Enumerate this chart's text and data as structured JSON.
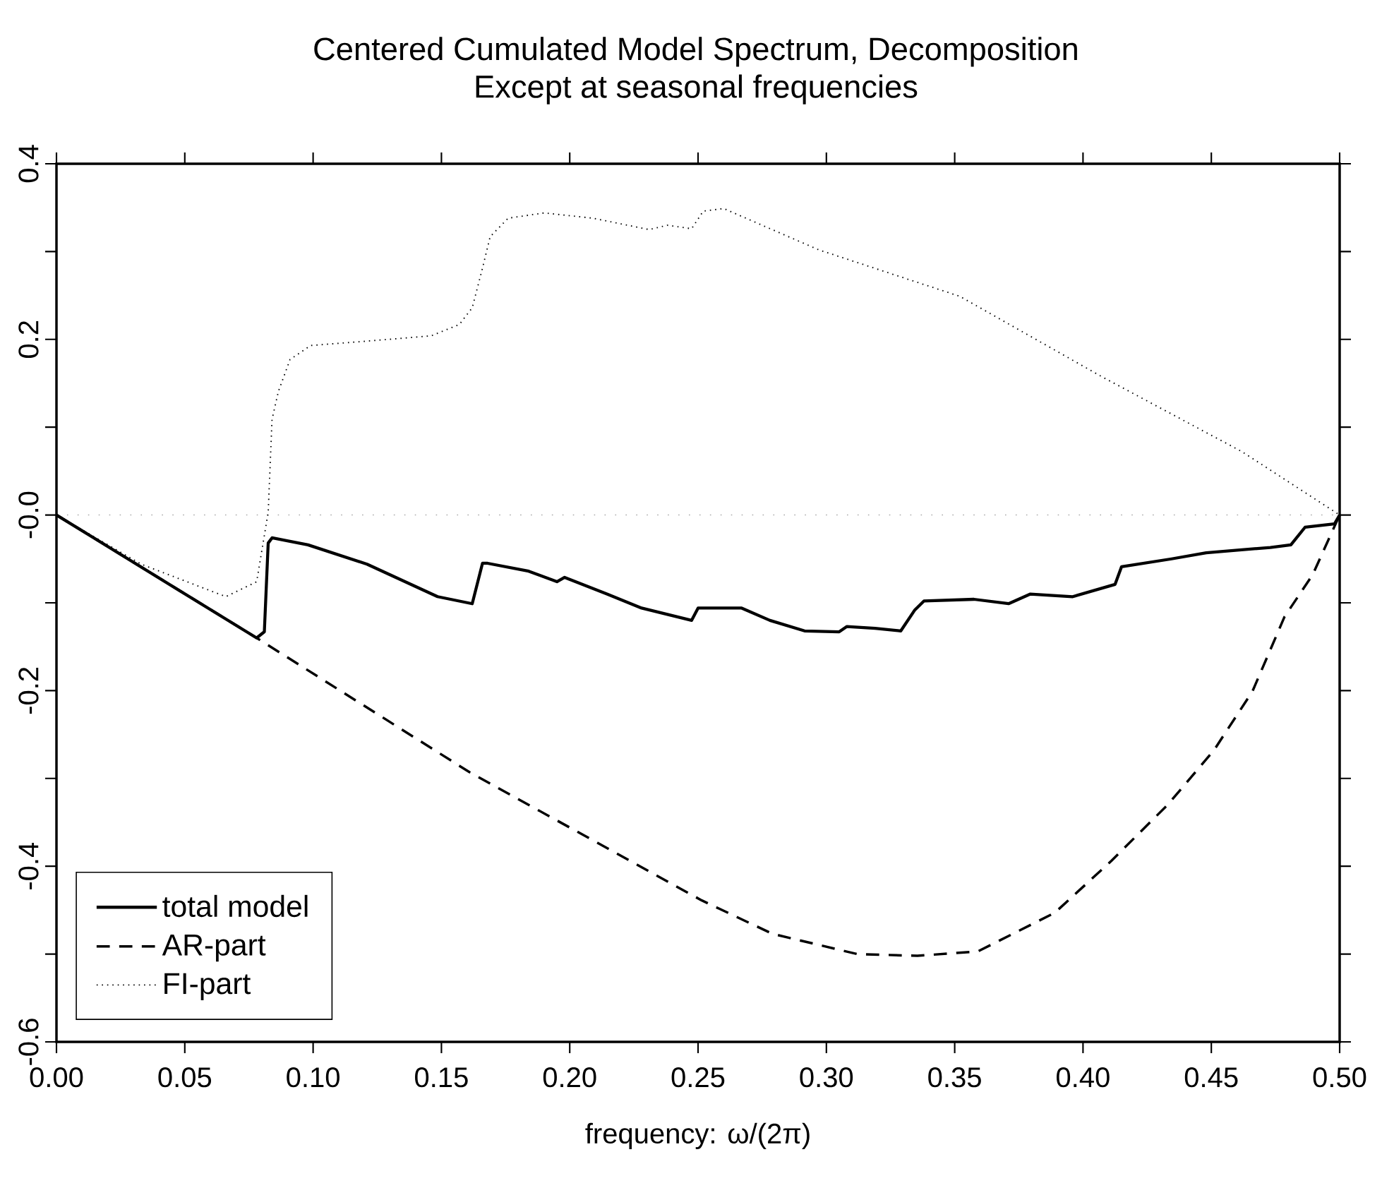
{
  "chart_data": {
    "type": "line",
    "title": "Centered Cumulated Model Spectrum, Decomposition",
    "subtitle": "Except at seasonal frequencies",
    "xlabel": "frequency: ω/(2π)",
    "xlim": [
      0,
      0.5
    ],
    "ylim": [
      -0.6,
      0.4
    ],
    "xticks": [
      {
        "value": 0,
        "label": "0.00"
      },
      0.05,
      {
        "value": 0.1,
        "label": "0.10"
      },
      0.15,
      {
        "value": 0.2,
        "label": "0.20"
      },
      0.25,
      {
        "value": 0.3,
        "label": "0.30"
      },
      0.35,
      {
        "value": 0.4,
        "label": "0.40"
      },
      0.45,
      {
        "value": 0.5,
        "label": "0.50"
      }
    ],
    "yticks": [
      -0.6,
      {
        "value": -0.5,
        "label": null
      },
      -0.4,
      {
        "value": -0.3,
        "label": null
      },
      -0.2,
      {
        "value": -0.1,
        "label": null
      },
      {
        "value": 0,
        "label": "-0.0"
      },
      {
        "value": 0.1,
        "label": null
      },
      0.2,
      {
        "value": 0.3,
        "label": null
      },
      0.4
    ],
    "legend": "bottom left",
    "ref_lines": [
      {
        "axis": "y",
        "value": 0,
        "color": "#aaaaaa",
        "line_style": "dotted"
      }
    ],
    "series": [
      {
        "name": "total model",
        "color": "#000000",
        "line_style": "solid",
        "x": [
          0,
          0.078,
          0.081,
          0.0825,
          0.084,
          0.098,
          0.121,
          0.1485,
          0.162,
          0.166,
          0.168,
          0.184,
          0.195,
          0.198,
          0.2145,
          0.228,
          0.2475,
          0.25,
          0.267,
          0.278,
          0.2915,
          0.305,
          0.308,
          0.319,
          0.329,
          0.3345,
          0.338,
          0.3575,
          0.371,
          0.3795,
          0.396,
          0.4125,
          0.415,
          0.4345,
          0.448,
          0.473,
          0.481,
          0.4865,
          0.498,
          0.5
        ],
        "values": [
          0,
          -0.14,
          -0.133,
          -0.032,
          -0.026,
          -0.034,
          -0.056,
          -0.093,
          -0.101,
          -0.055,
          -0.055,
          -0.064,
          -0.076,
          -0.071,
          -0.09,
          -0.106,
          -0.12,
          -0.106,
          -0.106,
          -0.12,
          -0.132,
          -0.133,
          -0.127,
          -0.129,
          -0.132,
          -0.108,
          -0.098,
          -0.096,
          -0.101,
          -0.09,
          -0.093,
          -0.079,
          -0.059,
          -0.05,
          -0.043,
          -0.037,
          -0.034,
          -0.014,
          -0.01,
          0
        ]
      },
      {
        "name": "AR-part",
        "color": "#000000",
        "line_style": "dashed",
        "x": [
          0,
          0.078,
          0.161,
          0.2515,
          0.279,
          0.312,
          0.3355,
          0.359,
          0.389,
          0.411,
          0.433,
          0.451,
          0.466,
          0.4785,
          0.4895,
          0.5
        ],
        "values": [
          0,
          -0.14,
          -0.293,
          -0.439,
          -0.477,
          -0.5,
          -0.502,
          -0.497,
          -0.453,
          -0.394,
          -0.33,
          -0.268,
          -0.201,
          -0.116,
          -0.068,
          0
        ]
      },
      {
        "name": "FI-part",
        "color": "#000000",
        "line_style": "dotted",
        "x": [
          0,
          0.033,
          0.066,
          0.078,
          0.0825,
          0.084,
          0.0865,
          0.091,
          0.099,
          0.121,
          0.146,
          0.157,
          0.162,
          0.166,
          0.169,
          0.176,
          0.19,
          0.209,
          0.231,
          0.238,
          0.2475,
          0.252,
          0.26,
          0.297,
          0.352,
          0.407,
          0.462,
          0.5
        ],
        "values": [
          0,
          -0.056,
          -0.093,
          -0.076,
          0.003,
          0.109,
          0.141,
          0.177,
          0.193,
          0.198,
          0.204,
          0.217,
          0.236,
          0.281,
          0.317,
          0.338,
          0.344,
          0.338,
          0.325,
          0.33,
          0.326,
          0.346,
          0.349,
          0.302,
          0.249,
          0.158,
          0.072,
          0
        ]
      }
    ]
  }
}
